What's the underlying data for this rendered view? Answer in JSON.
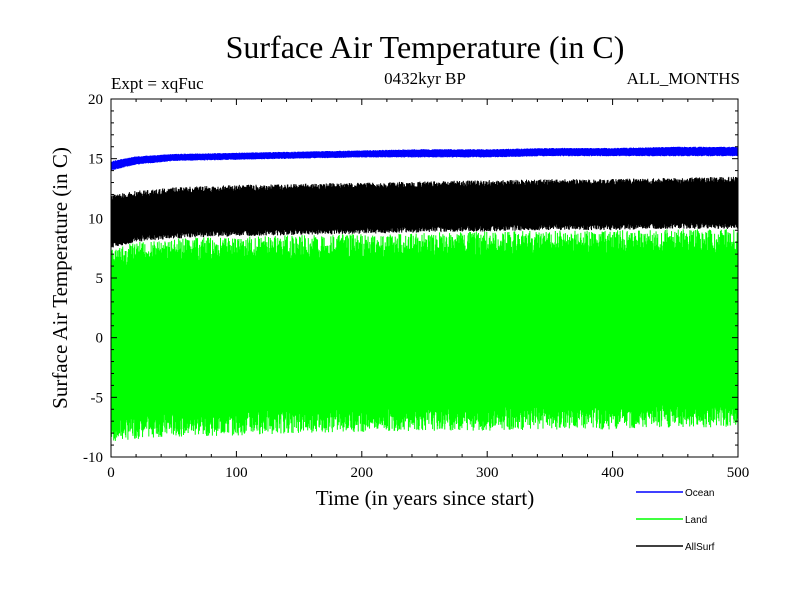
{
  "chart_data": {
    "type": "line",
    "title": "Surface Air Temperature (in C)",
    "subtitle_left": "Expt = xqFuc",
    "subtitle_center": "0432kyr BP",
    "subtitle_right": "ALL_MONTHS",
    "xlabel": "Time (in years since start)",
    "ylabel": "Surface Air Temperature (in C)",
    "xlim": [
      0,
      500
    ],
    "ylim": [
      -10,
      20
    ],
    "x_ticks": [
      "0",
      "100",
      "200",
      "300",
      "400",
      "500"
    ],
    "y_ticks": [
      "-10",
      "-5",
      "0",
      "5",
      "10",
      "15",
      "20"
    ],
    "grid": false,
    "legend_position": "bottom-right",
    "series": [
      {
        "name": "Ocean",
        "color": "#0000ff",
        "band_low_x": [
          0,
          20,
          50,
          100,
          150,
          200,
          250,
          300,
          350,
          400,
          450,
          500
        ],
        "band_low_y": [
          14.0,
          14.5,
          14.8,
          14.9,
          15.0,
          15.1,
          15.1,
          15.1,
          15.2,
          15.2,
          15.2,
          15.2
        ],
        "band_high_x": [
          0,
          20,
          50,
          100,
          150,
          200,
          250,
          300,
          350,
          400,
          450,
          500
        ],
        "band_high_y": [
          14.8,
          15.2,
          15.4,
          15.5,
          15.6,
          15.7,
          15.8,
          15.8,
          15.9,
          15.9,
          16.0,
          16.0
        ]
      },
      {
        "name": "Land",
        "color": "#00ff00",
        "band_low_x": [
          0,
          20,
          50,
          100,
          150,
          200,
          250,
          300,
          350,
          400,
          450,
          500
        ],
        "band_low_y": [
          -8.8,
          -8.5,
          -8.3,
          -8.2,
          -8.0,
          -7.9,
          -7.8,
          -7.8,
          -7.7,
          -7.7,
          -7.6,
          -7.5
        ],
        "band_high_x": [
          0,
          20,
          50,
          100,
          150,
          200,
          250,
          300,
          350,
          400,
          450,
          500
        ],
        "band_high_y": [
          7.5,
          8.0,
          8.3,
          8.5,
          8.6,
          8.7,
          8.8,
          8.9,
          9.0,
          9.0,
          9.1,
          9.1
        ]
      },
      {
        "name": "AllSurf",
        "color": "#000000",
        "band_low_x": [
          0,
          20,
          50,
          100,
          150,
          200,
          250,
          300,
          350,
          400,
          450,
          500
        ],
        "band_low_y": [
          7.5,
          8.0,
          8.3,
          8.5,
          8.6,
          8.7,
          8.8,
          8.9,
          9.0,
          9.0,
          9.1,
          9.1
        ],
        "band_high_x": [
          0,
          20,
          50,
          100,
          150,
          200,
          250,
          300,
          350,
          400,
          450,
          500
        ],
        "band_high_y": [
          12.0,
          12.3,
          12.6,
          12.8,
          12.9,
          13.0,
          13.1,
          13.2,
          13.3,
          13.3,
          13.4,
          13.5
        ]
      }
    ]
  }
}
